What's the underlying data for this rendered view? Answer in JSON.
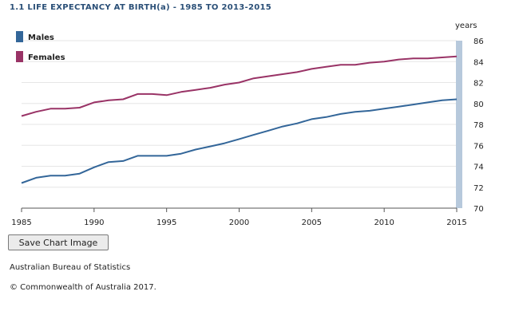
{
  "title": "1.1 LIFE EXPECTANCY AT BIRTH(a) - 1985 TO 2013-2015",
  "save_button_label": "Save Chart Image",
  "source": "Australian Bureau of Statistics",
  "copyright": "© Commonwealth of Australia 2017.",
  "chart_data": {
    "type": "line",
    "title": "1.1 LIFE EXPECTANCY AT BIRTH(a) - 1985 TO 2013-2015",
    "xlabel": "",
    "ylabel": "years",
    "xlim": [
      1985,
      2015
    ],
    "ylim": [
      70,
      86
    ],
    "x_ticks": [
      1985,
      1990,
      1995,
      2000,
      2005,
      2010,
      2015
    ],
    "y_ticks": [
      70,
      72,
      74,
      76,
      78,
      80,
      82,
      84,
      86
    ],
    "grid": "horizontal",
    "legend_position": "top-left",
    "x": [
      1985,
      1986,
      1987,
      1988,
      1989,
      1990,
      1991,
      1992,
      1993,
      1994,
      1995,
      1996,
      1997,
      1998,
      1999,
      2000,
      2001,
      2002,
      2003,
      2004,
      2005,
      2006,
      2007,
      2008,
      2009,
      2010,
      2011,
      2012,
      2013,
      2014,
      2015
    ],
    "series": [
      {
        "name": "Males",
        "color": "#336699",
        "values": [
          72.4,
          72.9,
          73.1,
          73.1,
          73.3,
          73.9,
          74.4,
          74.5,
          75.0,
          75.0,
          75.0,
          75.2,
          75.6,
          75.9,
          76.2,
          76.6,
          77.0,
          77.4,
          77.8,
          78.1,
          78.5,
          78.7,
          79.0,
          79.2,
          79.3,
          79.5,
          79.7,
          79.9,
          80.1,
          80.3,
          80.4
        ]
      },
      {
        "name": "Females",
        "color": "#993366",
        "values": [
          78.8,
          79.2,
          79.5,
          79.5,
          79.6,
          80.1,
          80.3,
          80.4,
          80.9,
          80.9,
          80.8,
          81.1,
          81.3,
          81.5,
          81.8,
          82.0,
          82.4,
          82.6,
          82.8,
          83.0,
          83.3,
          83.5,
          83.7,
          83.7,
          83.9,
          84.0,
          84.2,
          84.3,
          84.3,
          84.4,
          84.5
        ]
      }
    ]
  }
}
